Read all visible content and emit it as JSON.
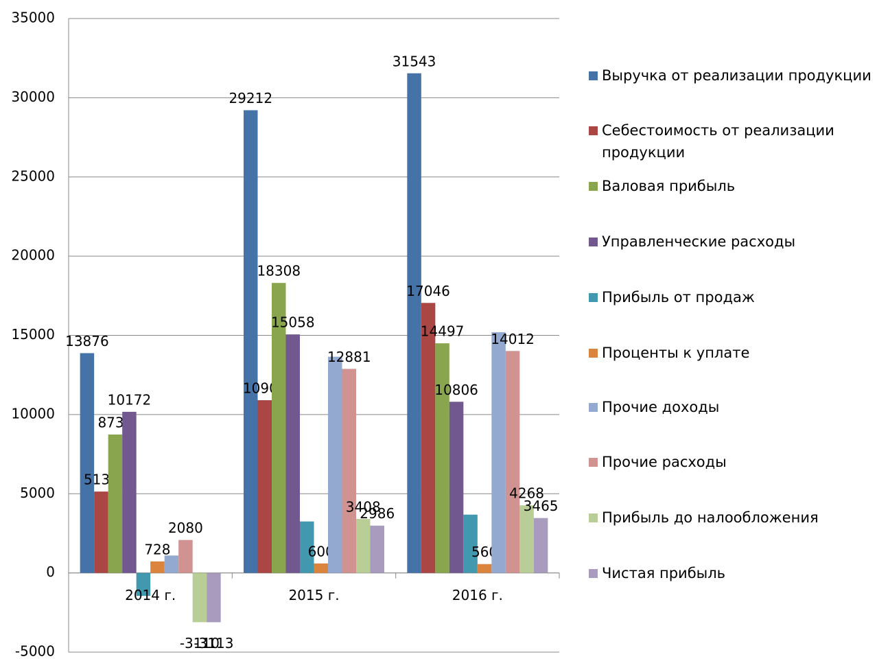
{
  "chart_data": {
    "type": "bar",
    "categories": [
      "2014 г.",
      "2015 г.",
      "2016 г."
    ],
    "ylim": [
      -5000,
      35000
    ],
    "yticks": [
      -5000,
      0,
      5000,
      10000,
      15000,
      20000,
      25000,
      30000,
      35000
    ],
    "grid": true,
    "legend": "right",
    "series": [
      {
        "name": "Выручка от реализации продукции",
        "color": "#4572A7",
        "values": [
          13876,
          29212,
          31543
        ]
      },
      {
        "name": "Себестоимость от реализации продукции",
        "color": "#AA4643",
        "values": [
          5137,
          10904,
          17046
        ]
      },
      {
        "name": "Валовая прибыль",
        "color": "#89A54E",
        "values": [
          8739,
          18308,
          14497
        ]
      },
      {
        "name": "Управленческие расходы",
        "color": "#71588F",
        "values": [
          10172,
          15058,
          10806
        ]
      },
      {
        "name": "Прибыль от продаж",
        "color": "#4198AF",
        "values": [
          -1450,
          3250,
          3680
        ],
        "value_labels": [
          null,
          null,
          null
        ]
      },
      {
        "name": "Проценты к уплате",
        "color": "#DB843D",
        "values": [
          728,
          600,
          560
        ]
      },
      {
        "name": "Прочие доходы",
        "color": "#93A9CF",
        "values": [
          1100,
          13650,
          15200
        ],
        "value_labels": [
          null,
          null,
          null
        ]
      },
      {
        "name": "Прочие расходы",
        "color": "#D19392",
        "values": [
          2080,
          12881,
          14012
        ]
      },
      {
        "name": "Прибыль до налообложения",
        "color": "#B9CD96",
        "values": [
          -3110,
          3408,
          4268
        ]
      },
      {
        "name": "Чистая прибыль",
        "color": "#A99BBD",
        "values": [
          -3113,
          2986,
          3465
        ]
      }
    ]
  }
}
